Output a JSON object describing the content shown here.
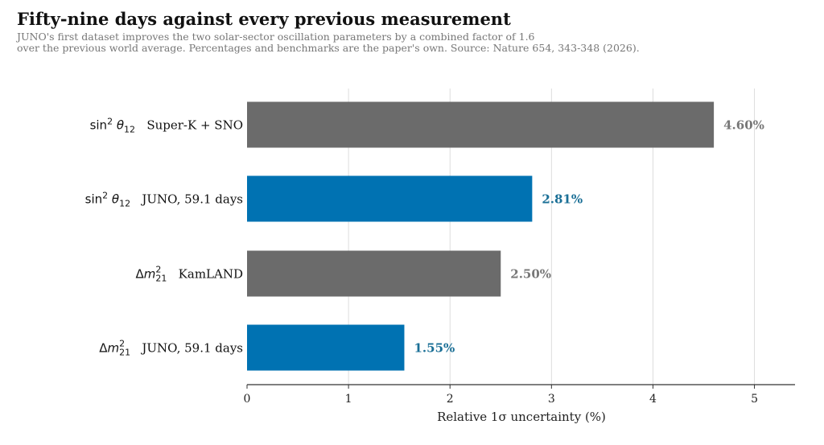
{
  "title": "Fifty-nine days against every previous measurement",
  "subtitle_lines": [
    "JUNO's first dataset improves the two solar-sector oscillation parameters by a combined factor of 1.6",
    "over the previous world average. Percentages and benchmarks are the paper's own. Source: Nature 654, 343-348 (2026)."
  ],
  "colors": {
    "juno": "#0072b2",
    "benchmark": "#6b6b6b",
    "juno_label": "#1a6f96",
    "benchmark_label": "#777777",
    "grid": "#dddddd",
    "axis": "#333333"
  },
  "chart_data": {
    "type": "bar",
    "orientation": "horizontal",
    "categories": [
      {
        "param": "sin2theta12",
        "experiment": "Super-K + SNO",
        "value": 4.6,
        "value_label": "4.60%",
        "group": "benchmark"
      },
      {
        "param": "sin2theta12",
        "experiment": "JUNO, 59.1 days",
        "value": 2.81,
        "value_label": "2.81%",
        "group": "juno"
      },
      {
        "param": "dm2_21",
        "experiment": "KamLAND",
        "value": 2.5,
        "value_label": "2.50%",
        "group": "benchmark"
      },
      {
        "param": "dm2_21",
        "experiment": "JUNO, 59.1 days",
        "value": 1.55,
        "value_label": "1.55%",
        "group": "juno"
      }
    ],
    "xlabel": "Relative 1σ uncertainty  (%)",
    "xlim": [
      0,
      5.4
    ],
    "xticks": [
      0,
      1,
      2,
      3,
      4,
      5
    ],
    "grid": "x",
    "legend": "none"
  }
}
